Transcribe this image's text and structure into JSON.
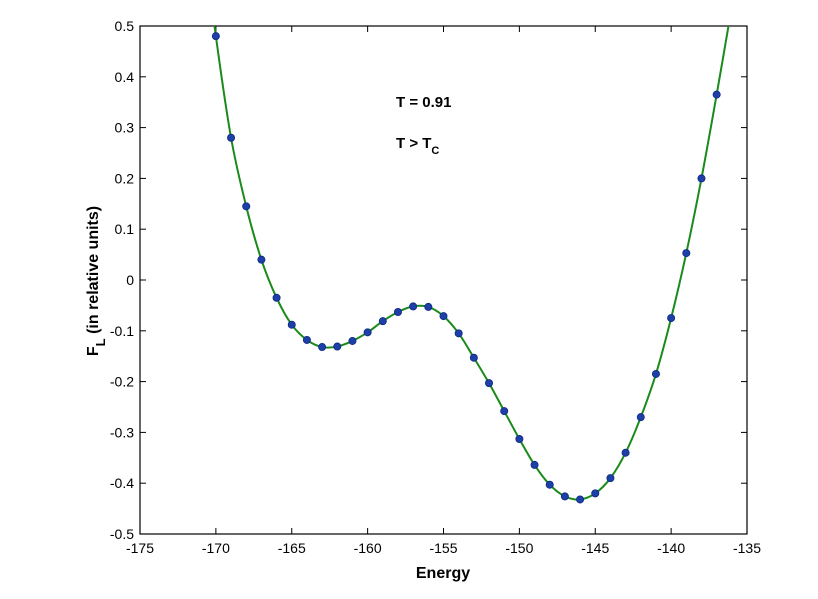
{
  "chart_data": {
    "type": "scatter",
    "xlabel": "Energy",
    "ylabel_main": "F",
    "ylabel_sub": "L",
    "ylabel_rest": " (in relative units)",
    "xlim": [
      -175,
      -135
    ],
    "ylim": [
      -0.5,
      0.5
    ],
    "x_ticks": [
      -175,
      -170,
      -165,
      -160,
      -155,
      -150,
      -145,
      -140,
      -135
    ],
    "y_ticks": [
      -0.5,
      -0.4,
      -0.3,
      -0.2,
      -0.1,
      0,
      0.1,
      0.2,
      0.3,
      0.4,
      0.5
    ],
    "grid": false,
    "annotations": [
      {
        "text": "T = 0.91"
      },
      {
        "text": "T > T",
        "sub": "C"
      }
    ],
    "series": [
      {
        "kind": "points",
        "color": "#1f3fa8",
        "points": [
          [
            -170,
            0.48
          ],
          [
            -169,
            0.28
          ],
          [
            -168,
            0.145
          ],
          [
            -167,
            0.04
          ],
          [
            -166,
            -0.035
          ],
          [
            -165,
            -0.088
          ],
          [
            -164,
            -0.118
          ],
          [
            -163,
            -0.132
          ],
          [
            -162,
            -0.131
          ],
          [
            -161,
            -0.12
          ],
          [
            -160,
            -0.103
          ],
          [
            -159,
            -0.081
          ],
          [
            -158,
            -0.063
          ],
          [
            -157,
            -0.052
          ],
          [
            -156,
            -0.053
          ],
          [
            -155,
            -0.071
          ],
          [
            -154,
            -0.105
          ],
          [
            -153,
            -0.153
          ],
          [
            -152,
            -0.203
          ],
          [
            -151,
            -0.258
          ],
          [
            -150,
            -0.313
          ],
          [
            -149,
            -0.364
          ],
          [
            -148,
            -0.403
          ],
          [
            -147,
            -0.426
          ],
          [
            -146,
            -0.432
          ],
          [
            -145,
            -0.42
          ],
          [
            -144,
            -0.39
          ],
          [
            -143,
            -0.34
          ],
          [
            -142,
            -0.27
          ],
          [
            -141,
            -0.185
          ],
          [
            -140,
            -0.075
          ],
          [
            -139,
            0.053
          ],
          [
            -138,
            0.2
          ],
          [
            -137,
            0.365
          ]
        ]
      },
      {
        "kind": "fit-curve",
        "color": "#1a8a1a"
      }
    ]
  }
}
